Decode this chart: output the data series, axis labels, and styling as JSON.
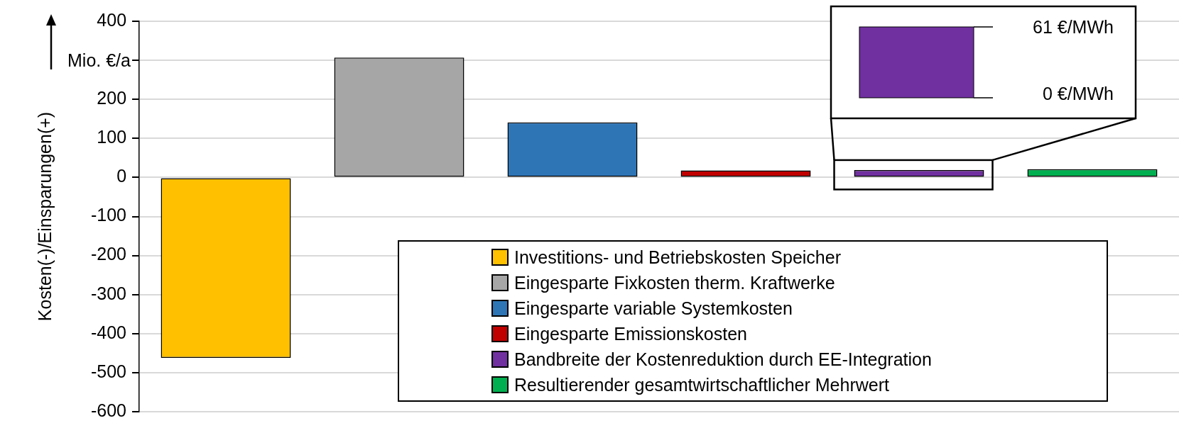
{
  "chart_data": {
    "type": "bar",
    "ylabel": "Kosten(-)/Einsparungen(+)",
    "stacked": true,
    "categories": [
      null,
      null,
      null,
      null,
      null,
      null
    ],
    "series": [
      {
        "name": "Investitions- und Betriebskosten Speicher",
        "color": "#ffc000",
        "values": [
          -462,
          null,
          null,
          null,
          null,
          null
        ]
      },
      {
        "name": "Eingesparte Fixkosten therm. Kraftwerke",
        "color": "#a6a6a6",
        "values": [
          null,
          307,
          null,
          null,
          null,
          null
        ]
      },
      {
        "name": "Eingesparte variable Systemkosten",
        "color": "#2e75b6",
        "values": [
          null,
          null,
          141,
          null,
          null,
          null
        ]
      },
      {
        "name": "Eingesparte Emissionskosten",
        "color": "#c00000",
        "values": [
          null,
          null,
          null,
          18,
          null,
          null
        ]
      },
      {
        "name": "Bandbreite der Kostenreduktion durch EE-Integration",
        "color": "#7030a0",
        "values": [
          null,
          null,
          null,
          null,
          19,
          null
        ]
      },
      {
        "name": "Resultierender gesamtwirtschaftlicher Mehrwert",
        "color": "#00b050",
        "values": [
          null,
          null,
          null,
          null,
          null,
          21
        ]
      }
    ],
    "ylim": [
      -600,
      400
    ],
    "yticks": [
      400,
      {
        "value": 300,
        "label": null
      },
      200,
      100,
      0,
      -100,
      -200,
      -300,
      -400,
      -500,
      -600
    ],
    "grid": "y",
    "legend": "bottom right",
    "tick_labels": "y",
    "annotations": [
      "Mio. €/a",
      "61 €/MWh",
      "0 €/MWh"
    ]
  }
}
